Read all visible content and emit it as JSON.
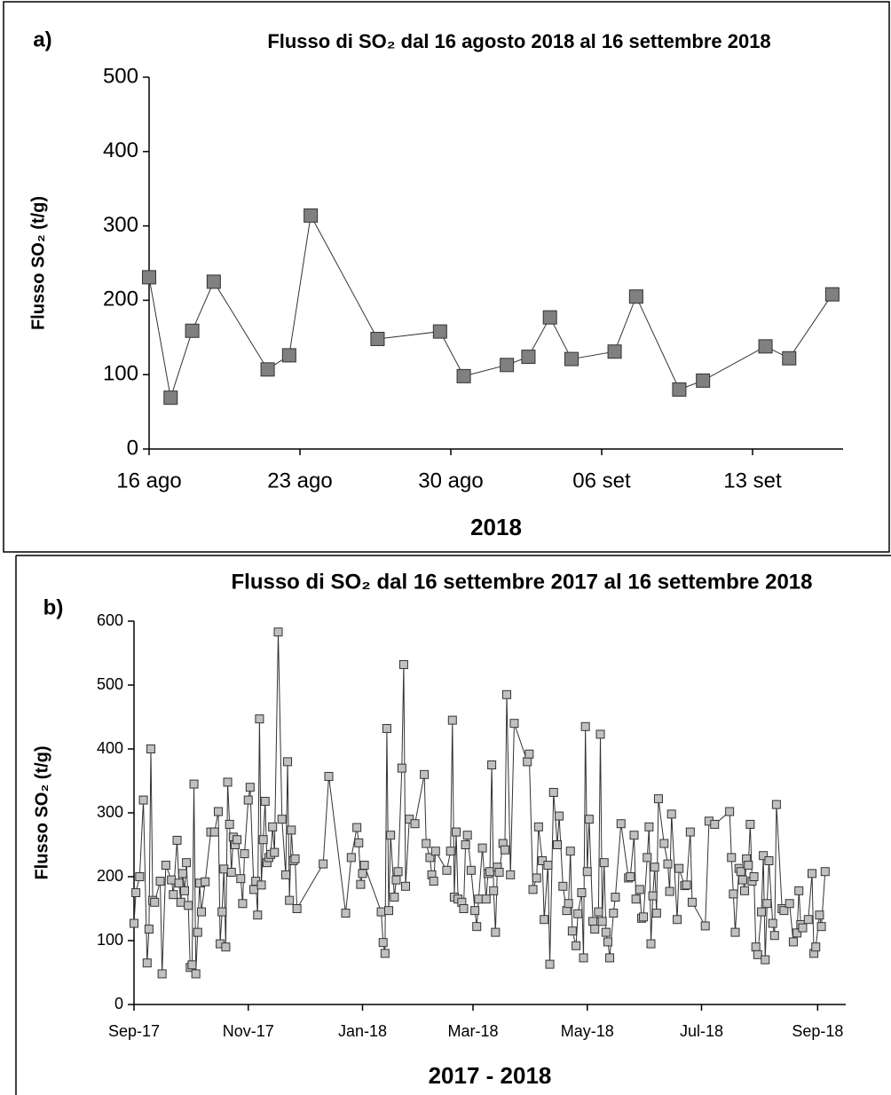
{
  "chart_data": [
    {
      "type": "line",
      "panel_label": "a)",
      "title": "Flusso di SO₂ dal 16 agosto 2018 al 16 settembre 2018",
      "ylabel": "Flusso SO₂ (t/g)",
      "xlabel": "2018",
      "series": [
        {
          "color": "#808080",
          "x": [
            0,
            1,
            2,
            3,
            5.5,
            6.5,
            7.5,
            10.6,
            13.5,
            14.6,
            16.6,
            17.6,
            18.6,
            19.6,
            21.6,
            22.6,
            24.6,
            25.7,
            28.6,
            29.7,
            31.7
          ],
          "values": [
            231,
            69,
            159,
            225,
            107,
            126,
            314,
            148,
            158,
            98,
            113,
            124,
            177,
            121,
            131,
            205,
            80,
            92,
            138,
            122,
            208
          ]
        }
      ],
      "xlim": [
        0,
        32.2
      ],
      "xticks": [
        {
          "value": 0,
          "label": "16 ago"
        },
        {
          "value": 7,
          "label": "23 ago"
        },
        {
          "value": 14,
          "label": "30 ago"
        },
        {
          "value": 21,
          "label": "06 set"
        },
        {
          "value": 28,
          "label": "13 set"
        }
      ],
      "ylim": [
        0,
        500
      ],
      "yticks": [
        0,
        100,
        200,
        300,
        400,
        500
      ],
      "grid": false
    },
    {
      "type": "line",
      "panel_label": "b)",
      "title": "Flusso di SO₂ dal 16 settembre 2017 al 16 settembre 2018",
      "ylabel": "Flusso SO₂ (t/g)",
      "xlabel": "2017 - 2018",
      "series": [
        {
          "color": "#c0c0c0",
          "x": [
            0,
            1,
            3,
            5,
            7,
            8,
            9,
            10,
            11,
            14,
            15,
            17,
            20,
            21,
            23,
            24,
            25,
            26,
            27,
            28,
            29,
            30,
            31,
            32,
            33,
            34,
            35,
            36,
            38,
            41,
            43,
            45,
            46,
            47,
            48,
            49,
            50,
            51,
            52,
            53,
            54,
            55,
            57,
            58,
            59,
            61,
            62,
            64,
            65,
            66,
            67,
            68,
            69,
            70,
            71,
            72,
            73,
            74,
            75,
            77,
            79,
            81,
            82,
            83,
            84,
            85,
            86,
            87,
            101,
            104,
            113,
            116,
            119,
            120,
            121,
            122,
            123,
            132,
            133,
            134,
            135,
            136,
            137,
            139,
            140,
            141,
            143,
            144,
            145,
            147,
            150,
            155,
            156,
            158,
            159,
            160,
            161,
            167,
            169,
            170,
            171,
            172,
            173,
            175,
            176,
            177,
            178,
            180,
            182,
            183,
            184,
            186,
            188,
            189,
            190,
            191,
            192,
            193,
            194,
            195,
            197,
            198,
            199,
            201,
            203,
            210,
            211,
            213,
            215,
            216,
            218,
            219,
            221,
            222,
            224,
            226,
            227,
            229,
            231,
            232,
            233,
            234,
            236,
            237,
            239,
            240,
            241,
            242,
            243,
            245,
            246,
            248,
            249,
            250,
            251,
            252,
            253,
            254,
            256,
            257,
            260,
            264,
            265,
            267,
            268,
            270,
            271,
            272,
            274,
            275,
            276,
            277,
            278,
            279,
            280,
            283,
            285,
            286,
            287,
            290,
            291,
            294,
            295,
            297,
            298,
            305,
            307,
            310,
            318,
            319,
            320,
            321,
            323,
            324,
            325,
            326,
            327,
            328,
            329,
            330,
            331,
            332,
            333,
            335,
            336,
            337,
            338,
            339,
            341,
            342,
            343,
            346,
            347,
            350,
            352,
            354,
            355,
            356,
            357,
            360,
            362,
            363,
            364,
            366,
            367,
            369
          ],
          "values": [
            127,
            175,
            200,
            320,
            65,
            118,
            400,
            163,
            160,
            193,
            48,
            218,
            195,
            172,
            257,
            190,
            160,
            205,
            178,
            222,
            155,
            58,
            62,
            345,
            48,
            113,
            190,
            145,
            192,
            270,
            270,
            302,
            95,
            145,
            212,
            90,
            348,
            282,
            207,
            262,
            250,
            258,
            197,
            158,
            236,
            320,
            340,
            180,
            193,
            140,
            447,
            187,
            258,
            318,
            222,
            230,
            235,
            278,
            238,
            583,
            290,
            203,
            380,
            163,
            273,
            225,
            228,
            150,
            220,
            357,
            143,
            230,
            277,
            253,
            188,
            205,
            218,
            145,
            97,
            80,
            432,
            147,
            265,
            168,
            195,
            208,
            370,
            532,
            185,
            290,
            283,
            360,
            252,
            230,
            203,
            193,
            240,
            210,
            240,
            445,
            168,
            270,
            165,
            160,
            150,
            250,
            265,
            210,
            147,
            122,
            165,
            245,
            165,
            205,
            208,
            375,
            178,
            113,
            215,
            207,
            252,
            242,
            485,
            203,
            440,
            380,
            392,
            180,
            198,
            278,
            225,
            133,
            218,
            63,
            332,
            250,
            295,
            185,
            147,
            158,
            240,
            115,
            92,
            142,
            175,
            73,
            435,
            208,
            290,
            130,
            118,
            145,
            423,
            130,
            222,
            113,
            98,
            73,
            143,
            168,
            283,
            198,
            200,
            265,
            165,
            180,
            135,
            137,
            230,
            278,
            95,
            170,
            215,
            143,
            322,
            252,
            220,
            177,
            298,
            133,
            213,
            186,
            187,
            270,
            160,
            123,
            287,
            282,
            302,
            230,
            173,
            113,
            213,
            208,
            195,
            178,
            228,
            218,
            282,
            193,
            200,
            90,
            78,
            145,
            233,
            70,
            158,
            225,
            127,
            108,
            313,
            150,
            147,
            158,
            98,
            112,
            178,
            125,
            120,
            133,
            205,
            80,
            90,
            140,
            122,
            208
          ]
        }
      ],
      "xlim": [
        0,
        380
      ],
      "xticks": [
        {
          "value": 0,
          "label": "Sep-17"
        },
        {
          "value": 61,
          "label": "Nov-17"
        },
        {
          "value": 122,
          "label": "Jan-18"
        },
        {
          "value": 181,
          "label": "Mar-18"
        },
        {
          "value": 242,
          "label": "May-18"
        },
        {
          "value": 303,
          "label": "Jul-18"
        },
        {
          "value": 365,
          "label": "Sep-18"
        }
      ],
      "ylim": [
        0,
        600
      ],
      "yticks": [
        0,
        100,
        200,
        300,
        400,
        500,
        600
      ],
      "grid": false
    }
  ]
}
